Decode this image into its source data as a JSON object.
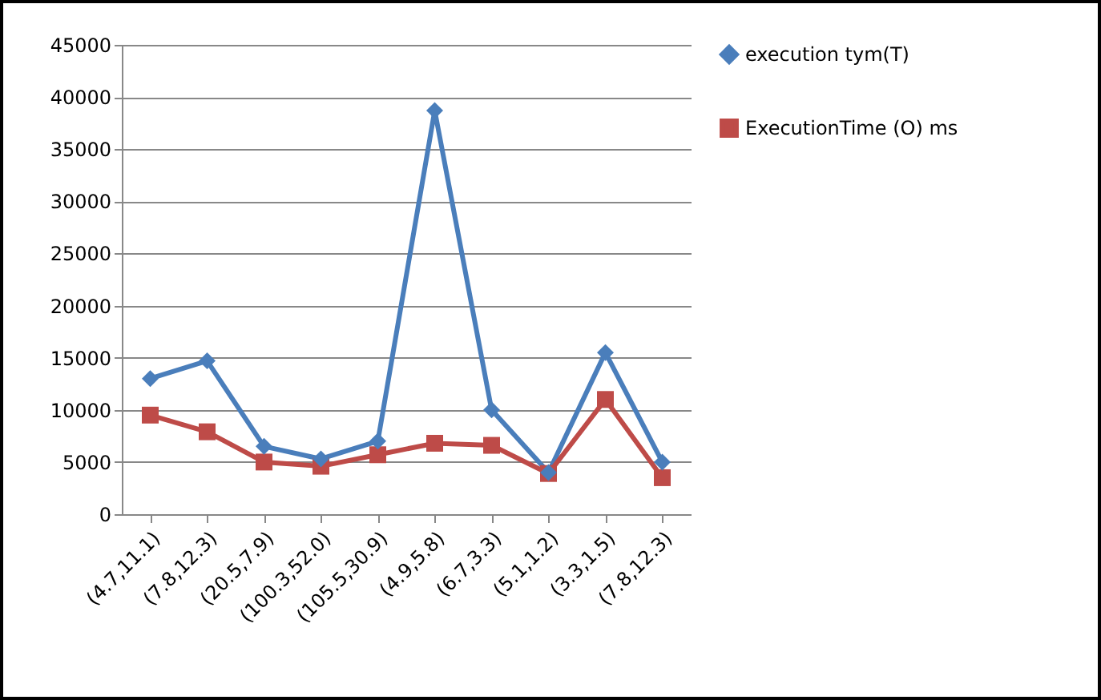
{
  "chart_data": {
    "type": "line",
    "categories": [
      "(4.7,11.1)",
      "(7.8,12.3)",
      "(20.5,7.9)",
      "(100.3,52.0)",
      "(105.5,30.9)",
      "(4.9,5.8)",
      "(6.7,3.3)",
      "(5.1,1.2)",
      "(3.3,1.5)",
      "(7.8,12.3)"
    ],
    "series": [
      {
        "name": "execution tym(T)",
        "color": "#4a7ebb",
        "marker": "diamond",
        "values": [
          13000,
          14700,
          6500,
          5300,
          7000,
          38700,
          10000,
          4000,
          15500,
          5000
        ]
      },
      {
        "name": "ExecutionTime (O) ms",
        "color": "#be4b48",
        "marker": "square",
        "values": [
          9500,
          7900,
          5000,
          4600,
          5700,
          6800,
          6600,
          3900,
          11000,
          3500
        ]
      }
    ],
    "ylim": [
      0,
      45000
    ],
    "yticks": [
      0,
      5000,
      10000,
      15000,
      20000,
      25000,
      30000,
      35000,
      40000,
      45000
    ],
    "grid": "y",
    "legend": "right"
  }
}
